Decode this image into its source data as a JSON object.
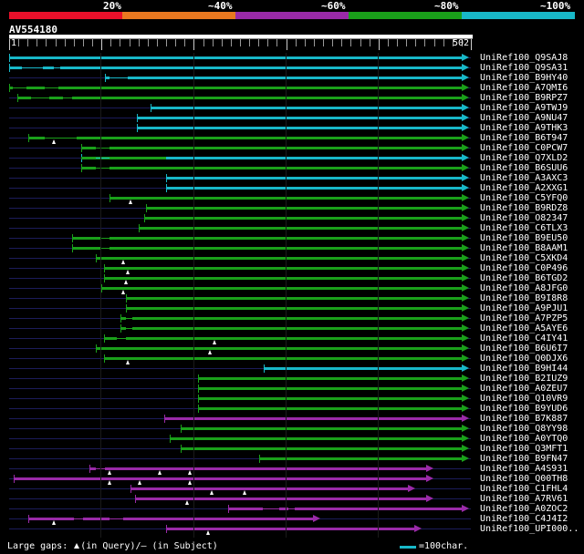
{
  "legend": {
    "colors": [
      "#e8102a",
      "#e87820",
      "#9a2aa8",
      "#1aa01a",
      "#18b8c8"
    ],
    "labels": [
      "20%",
      "~40%",
      "~60%",
      "~80%",
      "~100%"
    ]
  },
  "query": {
    "id": "AV554180",
    "start": "1",
    "end": "502"
  },
  "hits": [
    {
      "label": "UniRef100_Q9SAJ8",
      "color": "cyan",
      "start": 1,
      "end": 502,
      "gaps": [],
      "tris": []
    },
    {
      "label": "UniRef100_Q9SA31",
      "color": "cyan",
      "start": 1,
      "end": 502,
      "gaps": [
        [
          15,
          38
        ],
        [
          50,
          57
        ]
      ],
      "tris": []
    },
    {
      "label": "UniRef100_B9HY40",
      "color": "cyan",
      "start": 105,
      "end": 502,
      "gaps": [
        [
          110,
          130
        ]
      ],
      "tris": []
    },
    {
      "label": "UniRef100_A7QMI6",
      "color": "green",
      "start": 1,
      "end": 502,
      "gaps": [
        [
          5,
          20
        ],
        [
          40,
          55
        ]
      ],
      "tris": []
    },
    {
      "label": "UniRef100_B9RPZ7",
      "color": "green",
      "start": 10,
      "end": 502,
      "gaps": [
        [
          25,
          45
        ],
        [
          60,
          70
        ]
      ],
      "tris": []
    },
    {
      "label": "UniRef100_A9TWJ9",
      "color": "cyan",
      "start": 155,
      "end": 502,
      "gaps": [],
      "tris": []
    },
    {
      "label": "UniRef100_A9NU47",
      "color": "cyan",
      "start": 140,
      "end": 502,
      "gaps": [],
      "tris": []
    },
    {
      "label": "UniRef100_A9THK3",
      "color": "cyan",
      "start": 140,
      "end": 502,
      "gaps": [],
      "tris": []
    },
    {
      "label": "UniRef100_B6T947",
      "color": "green",
      "start": 22,
      "end": 502,
      "gaps": [
        [
          40,
          75
        ]
      ],
      "tris": [
        50
      ]
    },
    {
      "label": "UniRef100_C0PCW7",
      "color": "green",
      "start": 80,
      "end": 502,
      "gaps": [
        [
          95,
          110
        ]
      ],
      "tris": []
    },
    {
      "label": "UniRef100_Q7XLD2",
      "color": "cyan",
      "start": 80,
      "end": 502,
      "gaps": [
        [
          95,
          110
        ]
      ],
      "tris": [],
      "split": [
        172,
        "green"
      ]
    },
    {
      "label": "UniRef100_B6SUU6",
      "color": "green",
      "start": 80,
      "end": 502,
      "gaps": [
        [
          95,
          110
        ]
      ],
      "tris": []
    },
    {
      "label": "UniRef100_A3AXC3",
      "color": "cyan",
      "start": 172,
      "end": 502,
      "gaps": [],
      "tris": []
    },
    {
      "label": "UniRef100_A2XXG1",
      "color": "cyan",
      "start": 172,
      "end": 502,
      "gaps": [],
      "tris": []
    },
    {
      "label": "UniRef100_C5YFQ0",
      "color": "green",
      "start": 110,
      "end": 502,
      "gaps": [],
      "tris": [
        133
      ]
    },
    {
      "label": "UniRef100_B9RDZ8",
      "color": "green",
      "start": 150,
      "end": 502,
      "gaps": [],
      "tris": []
    },
    {
      "label": "UniRef100_O82347",
      "color": "green",
      "start": 148,
      "end": 502,
      "gaps": [],
      "tris": []
    },
    {
      "label": "UniRef100_C6TLX3",
      "color": "green",
      "start": 142,
      "end": 502,
      "gaps": [],
      "tris": []
    },
    {
      "label": "UniRef100_B9EU50",
      "color": "green",
      "start": 70,
      "end": 502,
      "gaps": [
        [
          100,
          110
        ]
      ],
      "tris": []
    },
    {
      "label": "UniRef100_B8AAM1",
      "color": "green",
      "start": 70,
      "end": 502,
      "gaps": [
        [
          100,
          110
        ]
      ],
      "tris": []
    },
    {
      "label": "UniRef100_C5XKD4",
      "color": "green",
      "start": 95,
      "end": 502,
      "gaps": [],
      "tris": [
        125
      ]
    },
    {
      "label": "UniRef100_C0P496",
      "color": "green",
      "start": 104,
      "end": 502,
      "gaps": [],
      "tris": [
        130
      ]
    },
    {
      "label": "UniRef100_B6TGD2",
      "color": "green",
      "start": 104,
      "end": 502,
      "gaps": [],
      "tris": [
        128
      ]
    },
    {
      "label": "UniRef100_A8JFG0",
      "color": "green",
      "start": 101,
      "end": 502,
      "gaps": [],
      "tris": [
        125
      ]
    },
    {
      "label": "UniRef100_B9I8R8",
      "color": "green",
      "start": 128,
      "end": 502,
      "gaps": [],
      "tris": []
    },
    {
      "label": "UniRef100_A9PJU1",
      "color": "green",
      "start": 128,
      "end": 502,
      "gaps": [],
      "tris": []
    },
    {
      "label": "UniRef100_A7PZP5",
      "color": "green",
      "start": 122,
      "end": 502,
      "gaps": [
        [
          128,
          135
        ]
      ],
      "tris": []
    },
    {
      "label": "UniRef100_A5AYE6",
      "color": "green",
      "start": 122,
      "end": 502,
      "gaps": [
        [
          128,
          135
        ]
      ],
      "tris": []
    },
    {
      "label": "UniRef100_C4IY41",
      "color": "green",
      "start": 104,
      "end": 502,
      "gaps": [
        [
          118,
          128
        ]
      ],
      "tris": [
        225
      ]
    },
    {
      "label": "UniRef100_B6U6I7",
      "color": "green",
      "start": 95,
      "end": 502,
      "gaps": [],
      "tris": [
        220
      ]
    },
    {
      "label": "UniRef100_Q0DJX6",
      "color": "green",
      "start": 104,
      "end": 502,
      "gaps": [],
      "tris": [
        130
      ]
    },
    {
      "label": "UniRef100_B9HI44",
      "color": "cyan",
      "start": 278,
      "end": 502,
      "gaps": [],
      "tris": []
    },
    {
      "label": "UniRef100_B2IUZ9",
      "color": "green",
      "start": 207,
      "end": 502,
      "gaps": [],
      "tris": []
    },
    {
      "label": "UniRef100_A0ZEU7",
      "color": "green",
      "start": 207,
      "end": 502,
      "gaps": [],
      "tris": []
    },
    {
      "label": "UniRef100_Q10VR9",
      "color": "green",
      "start": 207,
      "end": 502,
      "gaps": [],
      "tris": []
    },
    {
      "label": "UniRef100_B9YUD6",
      "color": "green",
      "start": 207,
      "end": 502,
      "gaps": [],
      "tris": []
    },
    {
      "label": "UniRef100_B7K887",
      "color": "magenta",
      "start": 170,
      "end": 502,
      "gaps": [],
      "tris": []
    },
    {
      "label": "UniRef100_Q8YY98",
      "color": "green",
      "start": 188,
      "end": 502,
      "gaps": [],
      "tris": []
    },
    {
      "label": "UniRef100_A0YTQ0",
      "color": "green",
      "start": 176,
      "end": 502,
      "gaps": [],
      "tris": []
    },
    {
      "label": "UniRef100_Q3MFT1",
      "color": "green",
      "start": 188,
      "end": 502,
      "gaps": [],
      "tris": []
    },
    {
      "label": "UniRef100_B9FN47",
      "color": "green",
      "start": 273,
      "end": 502,
      "gaps": [],
      "tris": []
    },
    {
      "label": "UniRef100_A4S931",
      "color": "magenta",
      "start": 88,
      "end": 463,
      "gaps": [
        [
          95,
          105
        ]
      ],
      "tris": [
        110,
        165,
        198
      ]
    },
    {
      "label": "UniRef100_Q00TH8",
      "color": "magenta",
      "start": 6,
      "end": 463,
      "gaps": [],
      "tris": [
        110,
        143,
        198
      ]
    },
    {
      "label": "UniRef100_C1FHL4",
      "color": "magenta",
      "start": 133,
      "end": 443,
      "gaps": [],
      "tris": [
        222,
        257
      ]
    },
    {
      "label": "UniRef100_A7RV61",
      "color": "magenta",
      "start": 138,
      "end": 463,
      "gaps": [],
      "tris": [
        195
      ]
    },
    {
      "label": "UniRef100_A0ZOC2",
      "color": "magenta",
      "start": 240,
      "end": 502,
      "gaps": [
        [
          277,
          295
        ],
        [
          305,
          312
        ]
      ],
      "tris": []
    },
    {
      "label": "UniRef100_C4J4I2",
      "color": "magenta",
      "start": 22,
      "end": 340,
      "gaps": [
        [
          72,
          82
        ],
        [
          110,
          125
        ]
      ],
      "tris": [
        50
      ]
    },
    {
      "label": "UniRef100_UPI000..",
      "color": "magenta",
      "start": 172,
      "end": 450,
      "gaps": [],
      "tris": [
        218
      ]
    }
  ],
  "footer": {
    "large_gaps": "Large gaps:",
    "in_query": "(in Query)/",
    "dash": "–",
    "in_subject": " (in Subject)",
    "scale_label": "=100char.",
    "scale_color": "#18b8c8"
  }
}
